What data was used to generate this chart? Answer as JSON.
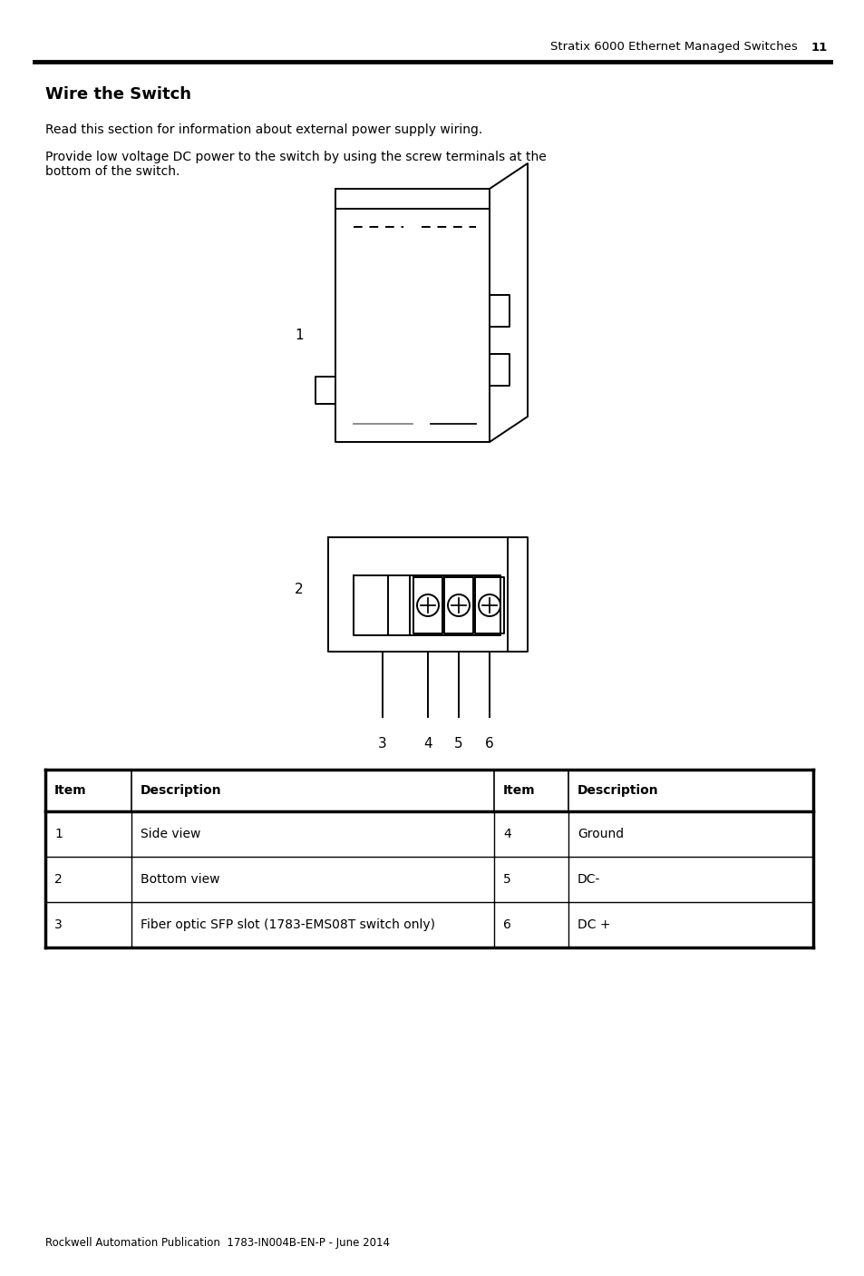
{
  "page_header": "Stratix 6000 Ethernet Managed Switches",
  "page_number": "11",
  "section_title": "Wire the Switch",
  "para1": "Read this section for information about external power supply wiring.",
  "para2": "Provide low voltage DC power to the switch by using the screw terminals at the\nbottom of the switch.",
  "table_headers": [
    "Item",
    "Description",
    "Item",
    "Description"
  ],
  "table_rows": [
    [
      "1",
      "Side view",
      "4",
      "Ground"
    ],
    [
      "2",
      "Bottom view",
      "5",
      "DC-"
    ],
    [
      "3",
      "Fiber optic SFP slot (1783-EMS08T switch only)",
      "6",
      "DC +"
    ]
  ],
  "footer": "Rockwell Automation Publication  1783-IN004B-EN-P - June 2014",
  "bg_color": "#ffffff",
  "text_color": "#000000"
}
